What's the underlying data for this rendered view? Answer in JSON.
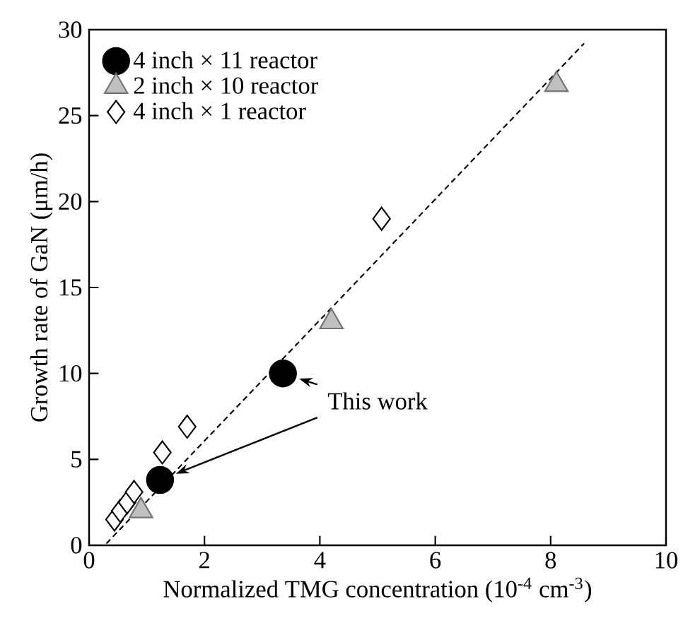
{
  "chart_data": {
    "type": "scatter",
    "xlabel": "Normalized TMG concentration (10$^{-4}$  cm$^{-3}$)",
    "ylabel": "Growth rate of GaN (μm/h)",
    "xlim": [
      0,
      10
    ],
    "ylim": [
      0,
      30
    ],
    "xticks": [
      0,
      2,
      4,
      6,
      8,
      10
    ],
    "yticks": [
      0,
      5,
      10,
      15,
      20,
      25,
      30
    ],
    "grid": false,
    "legend": "top left",
    "annotations": [
      {
        "text": "This work",
        "x": 3.36,
        "y": 10.0
      }
    ],
    "series": [
      {
        "name": "4 inch × 11 reactor",
        "color": "#000000",
        "marker": "circle",
        "x": [
          1.23,
          3.36
        ],
        "values": [
          3.8,
          10.0
        ]
      },
      {
        "name": "2 inch × 10 reactor",
        "color": "#c0c0c0",
        "marker": "triangle",
        "x": [
          0.9,
          4.2,
          8.1
        ],
        "values": [
          2.0,
          13.0,
          26.8
        ]
      },
      {
        "name": "4 inch × 1 reactor",
        "color": "#ffffff",
        "marker": "diamond",
        "x": [
          0.44,
          0.54,
          0.66,
          0.78,
          1.27,
          1.7,
          5.07
        ],
        "values": [
          1.5,
          2.0,
          2.5,
          3.1,
          5.4,
          6.9,
          19.0
        ]
      },
      {
        "type": "line",
        "color": "#000000",
        "line_style": "dashed",
        "marker": "none",
        "x": [
          0.3,
          8.58
        ],
        "values": [
          0.1,
          29.2
        ]
      }
    ]
  }
}
